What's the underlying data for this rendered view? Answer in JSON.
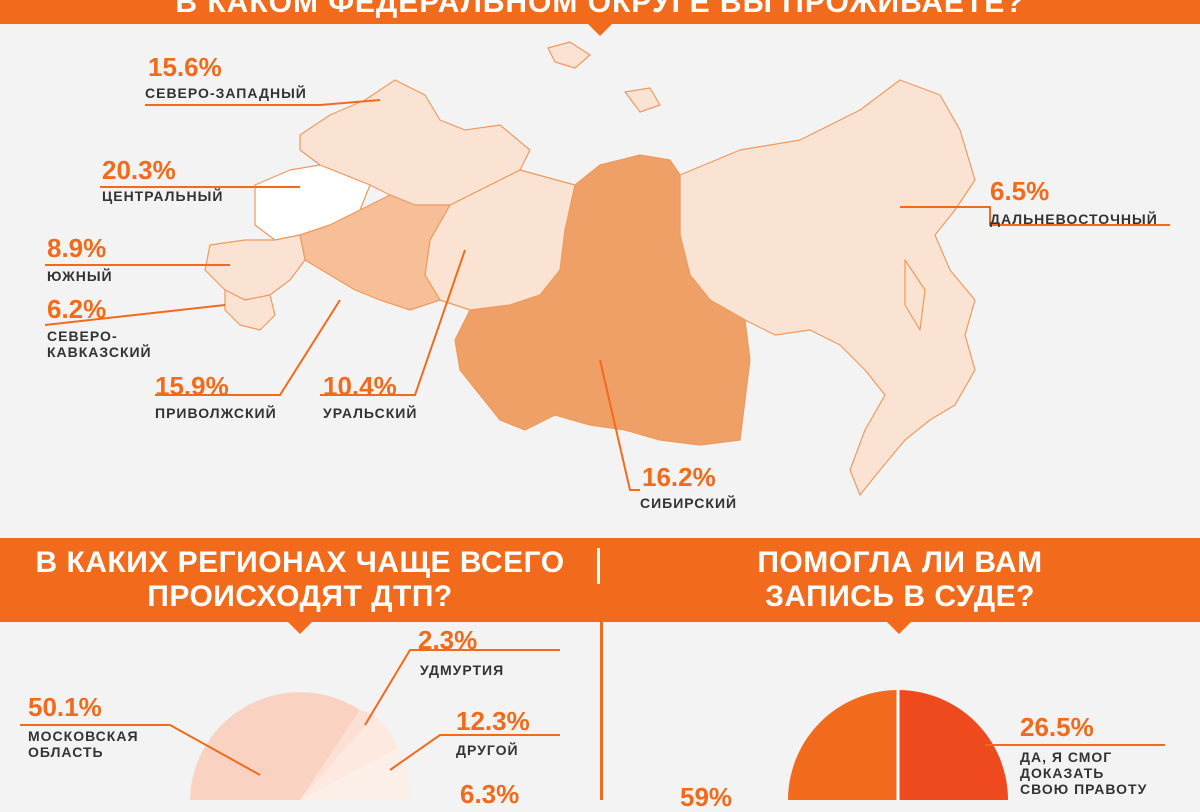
{
  "top": {
    "title": "В КАКОМ ФЕДЕРАЛЬНОМ ОКРУГЕ ВЫ ПРОЖИВАЕТЕ?"
  },
  "regions_heading": "В КАКИХ РЕГИОНАХ ЧАЩЕ ВСЕГО\nПРОИСХОДЯТ ДТП?",
  "court_heading": "ПОМОГЛА ЛИ ВАМ\nЗАПИСЬ В СУДЕ?",
  "colors": {
    "accent": "#f26a1b",
    "dark_text": "#333333",
    "map_light": "#fbe3d3",
    "map_mid": "#f6bf98",
    "map_dark": "#eea066",
    "map_white": "#ffffff"
  },
  "chart_data": [
    {
      "type": "bar",
      "title": "В КАКОМ ФЕДЕРАЛЬНОМ ОКРУГЕ ВЫ ПРОЖИВАЕТЕ?",
      "categories": [
        "Северо-Западный",
        "Центральный",
        "Южный",
        "Северо-Кавказский",
        "Приволжский",
        "Уральский",
        "Сибирский",
        "Дальневосточный"
      ],
      "values": [
        15.6,
        20.3,
        8.9,
        6.2,
        15.9,
        10.4,
        16.2,
        6.5
      ],
      "labels": [
        {
          "pct": "15.6%",
          "name": "СЕВЕРО-ЗАПАДНЫЙ"
        },
        {
          "pct": "20.3%",
          "name": "ЦЕНТРАЛЬНЫЙ"
        },
        {
          "pct": "8.9%",
          "name": "ЮЖНЫЙ"
        },
        {
          "pct": "6.2%",
          "name": "СЕВЕРО-\nКАВКАЗСКИЙ"
        },
        {
          "pct": "15.9%",
          "name": "ПРИВОЛЖСКИЙ"
        },
        {
          "pct": "10.4%",
          "name": "УРАЛЬСКИЙ"
        },
        {
          "pct": "16.2%",
          "name": "СИБИРСКИЙ"
        },
        {
          "pct": "6.5%",
          "name": "ДАЛЬНЕВОСТОЧНЫЙ"
        }
      ]
    },
    {
      "type": "pie",
      "title": "В КАКИХ РЕГИОНАХ ЧАЩЕ ВСЕГО ПРОИСХОДЯТ ДТП?",
      "slices": [
        {
          "label": "МОСКОВСКАЯ\nОБЛАСТЬ",
          "value": 50.1,
          "pct": "50.1%",
          "color": "#f9d2c2"
        },
        {
          "label": "УДМУРТИЯ",
          "value": 2.3,
          "pct": "2.3%",
          "color": "#fbe0d3"
        },
        {
          "label": "ДРУГОЙ",
          "value": 12.3,
          "pct": "12.3%",
          "color": "#fde9df"
        },
        {
          "label": "",
          "value": 6.3,
          "pct": "6.3%",
          "color": "#fcefe8"
        }
      ]
    },
    {
      "type": "pie",
      "title": "ПОМОГЛА ЛИ ВАМ ЗАПИСЬ В СУДЕ?",
      "slices": [
        {
          "label": "ДА, Я СМОГ\nДОКАЗАТЬ\nСВОЮ ПРАВОТУ",
          "value": 26.5,
          "pct": "26.5%",
          "color": "#ee4a1e"
        },
        {
          "label": "",
          "value": 59,
          "pct": "59%",
          "color": "#f26a1b"
        }
      ]
    }
  ]
}
